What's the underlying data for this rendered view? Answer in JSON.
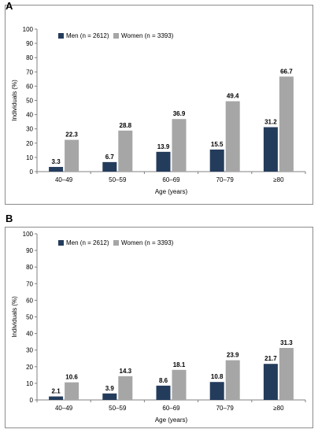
{
  "panels": [
    {
      "letter": "A"
    },
    {
      "letter": "B"
    }
  ],
  "colors": {
    "men": "#243c5c",
    "women": "#a6a6a6",
    "axis": "#808080"
  },
  "chart_data": [
    {
      "type": "bar",
      "panel": "A",
      "categories": [
        "40–49",
        "50–59",
        "60–69",
        "70–79",
        "≥80"
      ],
      "series": [
        {
          "name": "Men (n = 2612)",
          "values": [
            3.3,
            6.7,
            13.9,
            15.5,
            31.2
          ]
        },
        {
          "name": "Women (n = 3393)",
          "values": [
            22.3,
            28.8,
            36.9,
            49.4,
            66.7
          ]
        }
      ],
      "value_labels": {
        "men": [
          "3.3",
          "6.7",
          "13.9",
          "15.5",
          "31.2"
        ],
        "women": [
          "22.3",
          "28.8",
          "36.9",
          "49.4",
          "66.7"
        ]
      },
      "xlabel": "Age (years)",
      "ylabel": "Individuals (%)",
      "ylim": [
        0,
        100
      ],
      "yticks": [
        "0",
        "10",
        "20",
        "30",
        "40",
        "50",
        "60",
        "70",
        "80",
        "90",
        "100"
      ],
      "legend": "top-left",
      "grid": false
    },
    {
      "type": "bar",
      "panel": "B",
      "categories": [
        "40–49",
        "50–59",
        "60–69",
        "70–79",
        "≥80"
      ],
      "series": [
        {
          "name": "Men (n = 2612)",
          "values": [
            2.1,
            3.9,
            8.6,
            10.8,
            21.7
          ]
        },
        {
          "name": "Women (n = 3393)",
          "values": [
            10.6,
            14.3,
            18.1,
            23.9,
            31.3
          ]
        }
      ],
      "value_labels": {
        "men": [
          "2.1",
          "3.9",
          "8.6",
          "10.8",
          "21.7"
        ],
        "women": [
          "10.6",
          "14.3",
          "18.1",
          "23.9",
          "31.3"
        ]
      },
      "xlabel": "Age (years)",
      "ylabel": "Individuals (%)",
      "ylim": [
        0,
        100
      ],
      "yticks": [
        "0",
        "10",
        "20",
        "30",
        "40",
        "50",
        "60",
        "70",
        "80",
        "90",
        "100"
      ],
      "legend": "top-left",
      "grid": false
    }
  ]
}
